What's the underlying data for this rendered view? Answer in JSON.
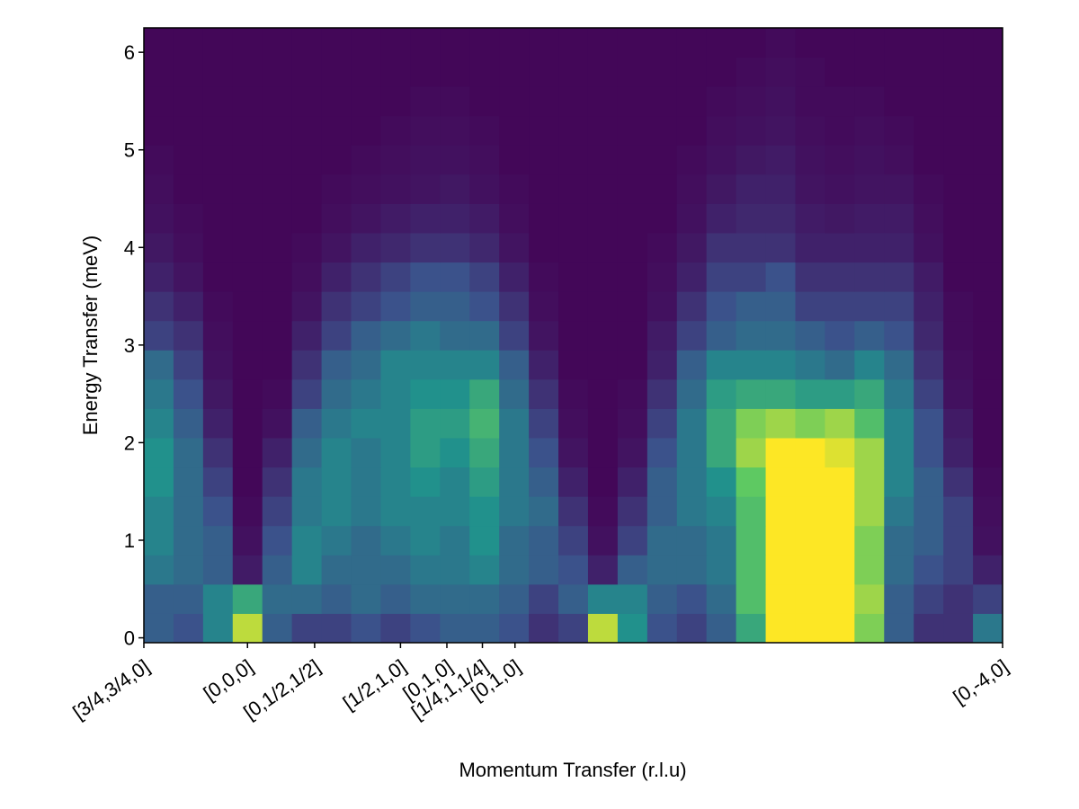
{
  "chart_data": {
    "type": "heatmap",
    "xlabel": "Momentum Transfer (r.l.u)",
    "ylabel": "Energy Transfer (meV)",
    "colormap": "viridis",
    "xlim": [
      0,
      87
    ],
    "ylim": [
      -0.05,
      6.25
    ],
    "xticks": [
      {
        "value": 0,
        "label": "[3/4,3/4,0]"
      },
      {
        "value": 10.5,
        "label": "[0,0,0]"
      },
      {
        "value": 17.3,
        "label": "[0,1/2,1/2]"
      },
      {
        "value": 26,
        "label": "[1/2,1,0]"
      },
      {
        "value": 30.7,
        "label": "[0,1,0]"
      },
      {
        "value": 34.3,
        "label": "[1/4,1,1/4]"
      },
      {
        "value": 37.6,
        "label": "[0,1,0]"
      },
      {
        "value": 87,
        "label": "[0,-4,0]"
      }
    ],
    "yticks": [
      0,
      1,
      2,
      3,
      4,
      5,
      6
    ],
    "z": [
      [
        0.3,
        0.25,
        0.45,
        0.9,
        0.3,
        0.2,
        0.2,
        0.25,
        0.2,
        0.25,
        0.3,
        0.3,
        0.25,
        0.15,
        0.2,
        0.9,
        0.5,
        0.25,
        0.2,
        0.3,
        0.6,
        1,
        1,
        1,
        0.8,
        0.3,
        0.15,
        0.15,
        0.4
      ],
      [
        0.3,
        0.3,
        0.45,
        0.6,
        0.35,
        0.35,
        0.3,
        0.35,
        0.3,
        0.35,
        0.35,
        0.35,
        0.3,
        0.2,
        0.3,
        0.45,
        0.45,
        0.3,
        0.25,
        0.35,
        0.7,
        1,
        1,
        1,
        0.85,
        0.3,
        0.2,
        0.15,
        0.2
      ],
      [
        0.4,
        0.35,
        0.3,
        0.08,
        0.3,
        0.45,
        0.35,
        0.35,
        0.35,
        0.4,
        0.4,
        0.45,
        0.35,
        0.3,
        0.25,
        0.1,
        0.3,
        0.35,
        0.35,
        0.4,
        0.7,
        1,
        1,
        1,
        0.8,
        0.35,
        0.25,
        0.2,
        0.1
      ],
      [
        0.45,
        0.35,
        0.3,
        0.05,
        0.25,
        0.45,
        0.4,
        0.35,
        0.4,
        0.45,
        0.4,
        0.5,
        0.35,
        0.3,
        0.2,
        0.05,
        0.2,
        0.35,
        0.35,
        0.4,
        0.7,
        1,
        1,
        1,
        0.8,
        0.35,
        0.3,
        0.2,
        0.05
      ],
      [
        0.45,
        0.35,
        0.25,
        0.03,
        0.2,
        0.4,
        0.45,
        0.4,
        0.45,
        0.45,
        0.45,
        0.5,
        0.4,
        0.35,
        0.15,
        0.03,
        0.15,
        0.3,
        0.4,
        0.45,
        0.7,
        1,
        1,
        1,
        0.85,
        0.4,
        0.3,
        0.2,
        0.04
      ],
      [
        0.5,
        0.35,
        0.2,
        0.02,
        0.15,
        0.4,
        0.45,
        0.4,
        0.45,
        0.5,
        0.45,
        0.55,
        0.4,
        0.3,
        0.1,
        0.02,
        0.1,
        0.3,
        0.4,
        0.5,
        0.75,
        1,
        1,
        1,
        0.85,
        0.45,
        0.3,
        0.15,
        0.03
      ],
      [
        0.5,
        0.35,
        0.15,
        0.02,
        0.1,
        0.35,
        0.45,
        0.4,
        0.45,
        0.55,
        0.5,
        0.6,
        0.4,
        0.25,
        0.06,
        0.02,
        0.06,
        0.25,
        0.4,
        0.6,
        0.85,
        1,
        1,
        0.95,
        0.85,
        0.45,
        0.25,
        0.1,
        0.02
      ],
      [
        0.45,
        0.3,
        0.1,
        0.02,
        0.05,
        0.3,
        0.4,
        0.45,
        0.45,
        0.55,
        0.55,
        0.65,
        0.4,
        0.2,
        0.04,
        0.02,
        0.04,
        0.2,
        0.4,
        0.6,
        0.8,
        0.85,
        0.8,
        0.85,
        0.7,
        0.45,
        0.25,
        0.08,
        0.02
      ],
      [
        0.4,
        0.25,
        0.07,
        0.02,
        0.03,
        0.2,
        0.35,
        0.4,
        0.45,
        0.5,
        0.5,
        0.6,
        0.35,
        0.15,
        0.03,
        0.02,
        0.03,
        0.15,
        0.35,
        0.55,
        0.6,
        0.6,
        0.55,
        0.55,
        0.6,
        0.4,
        0.2,
        0.05,
        0.02
      ],
      [
        0.35,
        0.2,
        0.05,
        0.02,
        0.02,
        0.15,
        0.3,
        0.35,
        0.45,
        0.45,
        0.45,
        0.45,
        0.3,
        0.1,
        0.02,
        0.02,
        0.02,
        0.1,
        0.3,
        0.45,
        0.45,
        0.45,
        0.4,
        0.35,
        0.45,
        0.35,
        0.15,
        0.04,
        0.02
      ],
      [
        0.2,
        0.15,
        0.04,
        0.02,
        0.02,
        0.1,
        0.2,
        0.3,
        0.35,
        0.4,
        0.35,
        0.35,
        0.2,
        0.06,
        0.02,
        0.02,
        0.02,
        0.08,
        0.2,
        0.3,
        0.35,
        0.35,
        0.3,
        0.25,
        0.3,
        0.25,
        0.12,
        0.03,
        0.02
      ],
      [
        0.15,
        0.1,
        0.03,
        0.02,
        0.02,
        0.06,
        0.15,
        0.2,
        0.25,
        0.3,
        0.3,
        0.25,
        0.15,
        0.04,
        0.02,
        0.02,
        0.02,
        0.05,
        0.15,
        0.25,
        0.3,
        0.3,
        0.2,
        0.2,
        0.2,
        0.2,
        0.1,
        0.03,
        0.02
      ],
      [
        0.1,
        0.06,
        0.02,
        0.02,
        0.02,
        0.04,
        0.1,
        0.15,
        0.2,
        0.25,
        0.25,
        0.2,
        0.1,
        0.03,
        0.02,
        0.02,
        0.02,
        0.04,
        0.1,
        0.2,
        0.2,
        0.25,
        0.15,
        0.15,
        0.15,
        0.15,
        0.08,
        0.02,
        0.02
      ],
      [
        0.07,
        0.04,
        0.02,
        0.02,
        0.02,
        0.03,
        0.06,
        0.1,
        0.12,
        0.15,
        0.15,
        0.12,
        0.06,
        0.02,
        0.02,
        0.02,
        0.02,
        0.03,
        0.07,
        0.15,
        0.15,
        0.15,
        0.1,
        0.1,
        0.1,
        0.1,
        0.05,
        0.02,
        0.02
      ],
      [
        0.05,
        0.03,
        0.02,
        0.02,
        0.02,
        0.02,
        0.04,
        0.06,
        0.08,
        0.1,
        0.1,
        0.08,
        0.04,
        0.02,
        0.02,
        0.02,
        0.02,
        0.02,
        0.05,
        0.1,
        0.12,
        0.12,
        0.08,
        0.07,
        0.08,
        0.08,
        0.04,
        0.02,
        0.02
      ],
      [
        0.04,
        0.02,
        0.02,
        0.02,
        0.02,
        0.02,
        0.03,
        0.04,
        0.05,
        0.06,
        0.07,
        0.05,
        0.03,
        0.02,
        0.02,
        0.02,
        0.02,
        0.02,
        0.04,
        0.07,
        0.1,
        0.1,
        0.06,
        0.05,
        0.06,
        0.06,
        0.03,
        0.02,
        0.02
      ],
      [
        0.03,
        0.02,
        0.02,
        0.02,
        0.02,
        0.02,
        0.02,
        0.03,
        0.04,
        0.05,
        0.05,
        0.04,
        0.02,
        0.02,
        0.02,
        0.02,
        0.02,
        0.02,
        0.03,
        0.05,
        0.07,
        0.08,
        0.05,
        0.04,
        0.05,
        0.04,
        0.02,
        0.02,
        0.02
      ],
      [
        0.02,
        0.02,
        0.02,
        0.02,
        0.02,
        0.02,
        0.02,
        0.02,
        0.03,
        0.04,
        0.04,
        0.03,
        0.02,
        0.02,
        0.02,
        0.02,
        0.02,
        0.02,
        0.02,
        0.04,
        0.05,
        0.06,
        0.04,
        0.03,
        0.04,
        0.03,
        0.02,
        0.02,
        0.02
      ],
      [
        0.02,
        0.02,
        0.02,
        0.02,
        0.02,
        0.02,
        0.02,
        0.02,
        0.02,
        0.03,
        0.03,
        0.02,
        0.02,
        0.02,
        0.02,
        0.02,
        0.02,
        0.02,
        0.02,
        0.03,
        0.04,
        0.05,
        0.03,
        0.03,
        0.03,
        0.02,
        0.02,
        0.02,
        0.02
      ],
      [
        0.02,
        0.02,
        0.02,
        0.02,
        0.02,
        0.02,
        0.02,
        0.02,
        0.02,
        0.02,
        0.02,
        0.02,
        0.02,
        0.02,
        0.02,
        0.02,
        0.02,
        0.02,
        0.02,
        0.02,
        0.03,
        0.04,
        0.03,
        0.02,
        0.02,
        0.02,
        0.02,
        0.02,
        0.02
      ],
      [
        0.02,
        0.02,
        0.02,
        0.02,
        0.02,
        0.02,
        0.02,
        0.02,
        0.02,
        0.02,
        0.02,
        0.02,
        0.02,
        0.02,
        0.02,
        0.02,
        0.02,
        0.02,
        0.02,
        0.02,
        0.02,
        0.03,
        0.02,
        0.02,
        0.02,
        0.02,
        0.02,
        0.02,
        0.02
      ]
    ]
  }
}
